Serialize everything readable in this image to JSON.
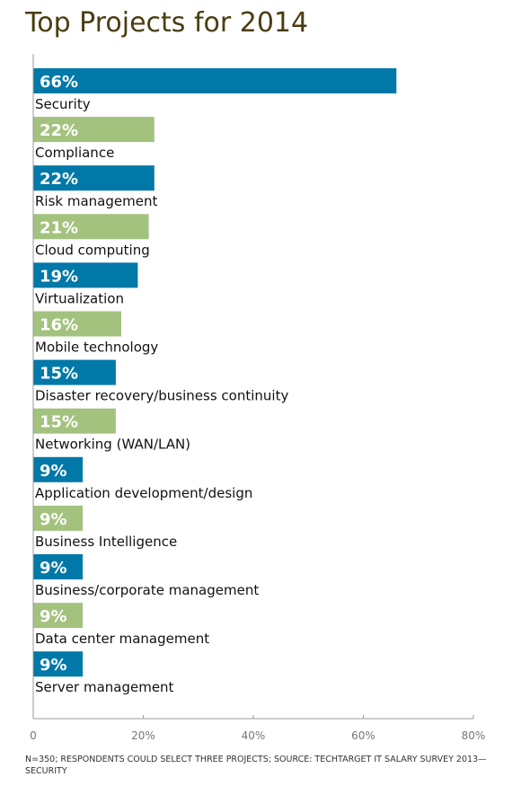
{
  "chart_data": {
    "type": "bar",
    "orientation": "horizontal",
    "title": "Top Projects for 2014",
    "categories": [
      "Security",
      "Compliance",
      "Risk management",
      "Cloud computing",
      "Virtualization",
      "Mobile technology",
      "Disaster recovery/business continuity",
      "Networking (WAN/LAN)",
      "Application development/design",
      "Business Intelligence",
      "Business/corporate management",
      "Data center management",
      "Server management"
    ],
    "values": [
      66,
      22,
      22,
      21,
      19,
      16,
      15,
      15,
      9,
      9,
      9,
      9,
      9
    ],
    "value_labels": [
      "66%",
      "22%",
      "22%",
      "21%",
      "19%",
      "16%",
      "15%",
      "15%",
      "9%",
      "9%",
      "9%",
      "9%",
      "9%"
    ],
    "xlim": [
      0,
      80
    ],
    "xticks": [
      0,
      20,
      40,
      60,
      80
    ],
    "xtick_labels": [
      "0",
      "20%",
      "40%",
      "60%",
      "80%"
    ],
    "bar_colors": [
      "#0078a8",
      "#a3c27e"
    ],
    "grid": false,
    "footnote": "N=350; Respondents could select three projects; Source: TechTarget IT Salary Survey 2013—Security"
  }
}
